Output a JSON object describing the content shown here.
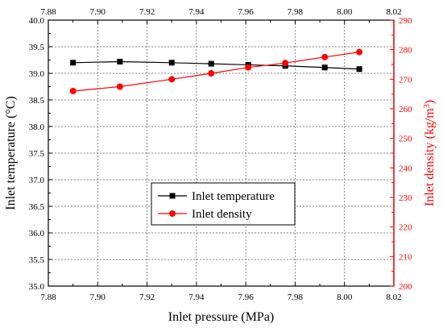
{
  "chart_data": {
    "type": "line",
    "xlabel": "Inlet pressure (MPa)",
    "ylabel_left": "Inlet temperature (°C)",
    "ylabel_right_main": "Inlet density (kg/m",
    "ylabel_right_sup": "3",
    "ylabel_right_end": ")",
    "xlim": [
      7.88,
      8.02
    ],
    "ylim_left": [
      35.0,
      40.0
    ],
    "ylim_right": [
      200,
      290
    ],
    "x_ticks": [
      "7.88",
      "7.90",
      "7.92",
      "7.94",
      "7.96",
      "7.98",
      "8.00",
      "8.02"
    ],
    "y_left_ticks": [
      "35.0",
      "35.5",
      "36.0",
      "36.5",
      "37.0",
      "37.5",
      "38.0",
      "38.5",
      "39.0",
      "39.5",
      "40.0"
    ],
    "y_right_ticks": [
      "200",
      "210",
      "220",
      "230",
      "240",
      "250",
      "260",
      "270",
      "280",
      "290"
    ],
    "grid": true,
    "legend_placement": "center-left",
    "series": [
      {
        "name": "Inlet temperature",
        "axis": "left",
        "marker": "square",
        "color": "#000000",
        "x": [
          7.89,
          7.909,
          7.93,
          7.946,
          7.961,
          7.976,
          7.992,
          8.006
        ],
        "y": [
          39.2,
          39.22,
          39.2,
          39.18,
          39.16,
          39.14,
          39.11,
          39.08
        ]
      },
      {
        "name": "Inlet density",
        "axis": "right",
        "marker": "circle",
        "color": "#ff0000",
        "x": [
          7.89,
          7.909,
          7.93,
          7.946,
          7.961,
          7.976,
          7.992,
          8.006
        ],
        "y": [
          266.0,
          267.5,
          270.0,
          272.0,
          274.0,
          275.5,
          277.5,
          279.2
        ]
      }
    ]
  }
}
